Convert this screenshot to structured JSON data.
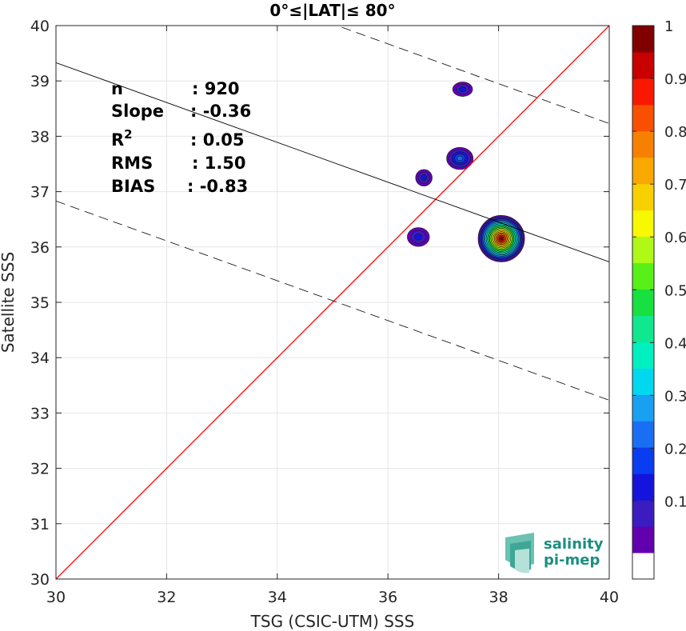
{
  "chart_data": {
    "type": "contour",
    "title": "0°≤|LAT|≤ 80°",
    "xlabel": "TSG (CSIC-UTM) SSS",
    "ylabel": "Satellite SSS",
    "xlim": [
      30,
      40
    ],
    "ylim": [
      30,
      40
    ],
    "xticks": [
      "30",
      "32",
      "34",
      "36",
      "38",
      "40"
    ],
    "yticks": [
      "30",
      "31",
      "32",
      "33",
      "34",
      "35",
      "36",
      "37",
      "38",
      "39",
      "40"
    ],
    "grid": true,
    "stats": [
      {
        "label": "n",
        "value": ": 920"
      },
      {
        "label": "Slope",
        "value": ": -0.36"
      },
      {
        "label": "R",
        "sup": "2",
        "value": ": 0.05"
      },
      {
        "label": "RMS",
        "value": ": 1.50"
      },
      {
        "label": "BIAS",
        "value": ": -0.83"
      }
    ],
    "lines": {
      "identity": {
        "slope": 1,
        "intercept": 0,
        "color": "#ff0000"
      },
      "fit": {
        "slope": -0.36,
        "intercept": 50.13,
        "color": "#000000"
      },
      "upper_dashed": {
        "slope": -0.36,
        "intercept": 52.63
      },
      "lower_dashed": {
        "slope": -0.36,
        "intercept": 47.63
      }
    },
    "density_blobs": [
      {
        "x": 38.05,
        "y": 36.15,
        "rx": 0.42,
        "ry": 0.42,
        "peak": 1.0
      },
      {
        "x": 37.3,
        "y": 37.6,
        "rx": 0.24,
        "ry": 0.2,
        "peak": 0.25
      },
      {
        "x": 37.35,
        "y": 38.85,
        "rx": 0.18,
        "ry": 0.13,
        "peak": 0.15
      },
      {
        "x": 36.65,
        "y": 37.25,
        "rx": 0.15,
        "ry": 0.15,
        "peak": 0.15
      },
      {
        "x": 36.55,
        "y": 36.18,
        "rx": 0.2,
        "ry": 0.17,
        "peak": 0.15
      }
    ],
    "colorbar": {
      "ticks": [
        "0.1",
        "0.2",
        "0.3",
        "0.4",
        "0.5",
        "0.6",
        "0.7",
        "0.8",
        "0.9",
        "1"
      ],
      "levels": [
        "#ffffff",
        "#6200b0",
        "#3a1cc0",
        "#1414dc",
        "#0a3cf0",
        "#1a6ef4",
        "#1aa0f0",
        "#00d8f0",
        "#00f0c0",
        "#10e890",
        "#18e040",
        "#58f018",
        "#b0f818",
        "#f8f800",
        "#f8d000",
        "#f8a800",
        "#f88000",
        "#f85000",
        "#f81800",
        "#c80000",
        "#800000"
      ]
    }
  },
  "logo": {
    "line1": "salinity",
    "line2": "pi-mep"
  }
}
